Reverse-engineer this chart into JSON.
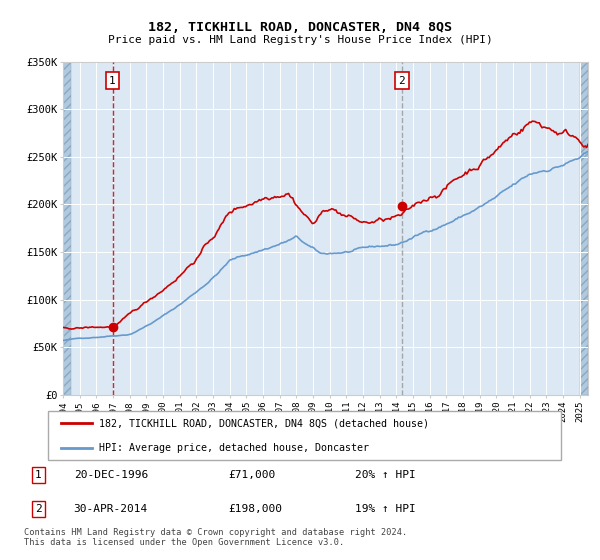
{
  "title": "182, TICKHILL ROAD, DONCASTER, DN4 8QS",
  "subtitle": "Price paid vs. HM Land Registry's House Price Index (HPI)",
  "red_label": "182, TICKHILL ROAD, DONCASTER, DN4 8QS (detached house)",
  "blue_label": "HPI: Average price, detached house, Doncaster",
  "annotation1": {
    "num": "1",
    "date": "20-DEC-1996",
    "price": "£71,000",
    "pct": "20% ↑ HPI",
    "x_year": 1996.97,
    "y_val": 71000
  },
  "annotation2": {
    "num": "2",
    "date": "30-APR-2014",
    "price": "£198,000",
    "pct": "19% ↑ HPI",
    "x_year": 2014.33,
    "y_val": 198000
  },
  "footer": "Contains HM Land Registry data © Crown copyright and database right 2024.\nThis data is licensed under the Open Government Licence v3.0.",
  "xmin": 1994.0,
  "xmax": 2025.5,
  "ymin": 0,
  "ymax": 350000,
  "yticks": [
    0,
    50000,
    100000,
    150000,
    200000,
    250000,
    300000,
    350000
  ],
  "ytick_labels": [
    "£0",
    "£50K",
    "£100K",
    "£150K",
    "£200K",
    "£250K",
    "£300K",
    "£350K"
  ],
  "bg_color": "#dce9f5",
  "hatch_color": "#b0c8e0",
  "hatch_edge_color": "#8aaabb",
  "grid_color": "#ffffff",
  "red_color": "#cc0000",
  "blue_color": "#6699cc",
  "hatch_left_end": 1994.5,
  "hatch_right_start": 2025.0,
  "ann_vline1_color": "#cc0000",
  "ann_vline2_color": "#999999"
}
